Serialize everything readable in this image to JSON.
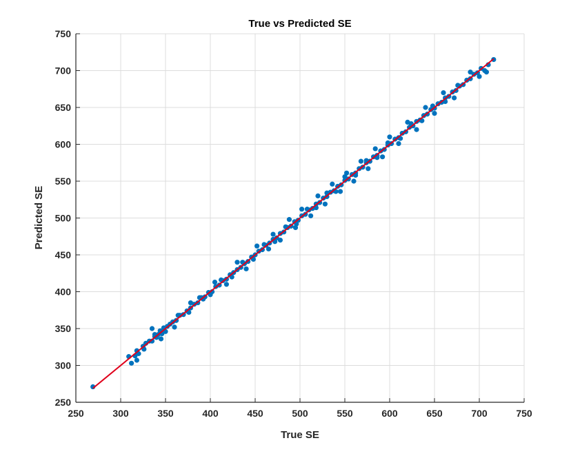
{
  "chart_data": {
    "type": "scatter",
    "title": "True vs Predicted SE",
    "xlabel": "True SE",
    "ylabel": "Predicted SE",
    "xlim": [
      250,
      750
    ],
    "ylim": [
      250,
      750
    ],
    "xticks": [
      250,
      300,
      350,
      400,
      450,
      500,
      550,
      600,
      650,
      700,
      750
    ],
    "yticks": [
      250,
      300,
      350,
      400,
      450,
      500,
      550,
      600,
      650,
      700,
      750
    ],
    "grid": true,
    "colors": {
      "points": "#0072BD",
      "fit_line": "#E0001B",
      "grid": "#DCDCDC",
      "axis": "#262626"
    },
    "series": [
      {
        "kind": "points",
        "x": [
          269,
          309,
          312,
          316,
          318,
          320,
          325,
          328,
          332,
          335,
          338,
          340,
          342,
          344,
          346,
          348,
          352,
          355,
          358,
          362,
          366,
          370,
          374,
          378,
          382,
          386,
          390,
          394,
          398,
          402,
          406,
          410,
          414,
          418,
          422,
          426,
          430,
          434,
          438,
          442,
          446,
          450,
          454,
          458,
          462,
          466,
          470,
          474,
          478,
          482,
          486,
          490,
          494,
          498,
          502,
          506,
          510,
          514,
          518,
          522,
          526,
          530,
          534,
          538,
          542,
          546,
          550,
          554,
          558,
          562,
          566,
          570,
          574,
          578,
          582,
          586,
          590,
          594,
          598,
          602,
          606,
          610,
          614,
          618,
          622,
          626,
          630,
          634,
          638,
          642,
          646,
          650,
          654,
          658,
          662,
          666,
          670,
          674,
          678,
          682,
          686,
          690,
          694,
          698,
          702,
          706,
          710,
          716,
          335,
          345,
          360,
          378,
          392,
          405,
          418,
          430,
          440,
          452,
          465,
          470,
          478,
          488,
          495,
          502,
          512,
          520,
          528,
          536,
          545,
          552,
          560,
          568,
          576,
          584,
          592,
          600,
          610,
          620,
          630,
          640,
          650,
          660,
          672,
          690,
          708,
          318,
          326,
          338,
          350,
          364,
          376,
          388,
          400,
          412,
          424,
          436,
          448,
          460,
          472,
          484,
          496,
          508,
          518,
          530,
          540,
          550,
          562,
          574,
          586,
          598,
          612,
          624,
          636,
          648,
          662,
          676,
          700
        ],
        "y": [
          271,
          312,
          303,
          313,
          307,
          316,
          326,
          330,
          333,
          333,
          339,
          338,
          342,
          347,
          343,
          351,
          353,
          356,
          359,
          361,
          368,
          369,
          374,
          378,
          383,
          385,
          392,
          393,
          399,
          400,
          407,
          409,
          415,
          417,
          423,
          426,
          430,
          433,
          438,
          441,
          447,
          450,
          455,
          457,
          463,
          466,
          471,
          473,
          479,
          481,
          487,
          489,
          495,
          497,
          503,
          505,
          511,
          513,
          519,
          521,
          527,
          529,
          535,
          537,
          543,
          545,
          551,
          553,
          559,
          561,
          567,
          569,
          575,
          577,
          583,
          585,
          591,
          593,
          599,
          601,
          607,
          609,
          615,
          617,
          623,
          625,
          631,
          633,
          639,
          641,
          647,
          649,
          655,
          657,
          663,
          665,
          671,
          673,
          679,
          681,
          687,
          689,
          695,
          697,
          703,
          700,
          708,
          715,
          350,
          336,
          352,
          385,
          390,
          413,
          410,
          440,
          431,
          462,
          458,
          478,
          470,
          498,
          487,
          512,
          503,
          530,
          519,
          546,
          536,
          561,
          550,
          577,
          567,
          594,
          583,
          610,
          601,
          630,
          620,
          650,
          642,
          670,
          663,
          698,
          698,
          320,
          322,
          342,
          346,
          368,
          372,
          392,
          396,
          416,
          420,
          440,
          444,
          464,
          468,
          488,
          492,
          512,
          514,
          534,
          536,
          556,
          558,
          578,
          582,
          602,
          608,
          628,
          632,
          652,
          658,
          680,
          692
        ]
      },
      {
        "kind": "fit-line",
        "x": [
          269,
          716
        ],
        "y": [
          269,
          716
        ]
      }
    ]
  }
}
